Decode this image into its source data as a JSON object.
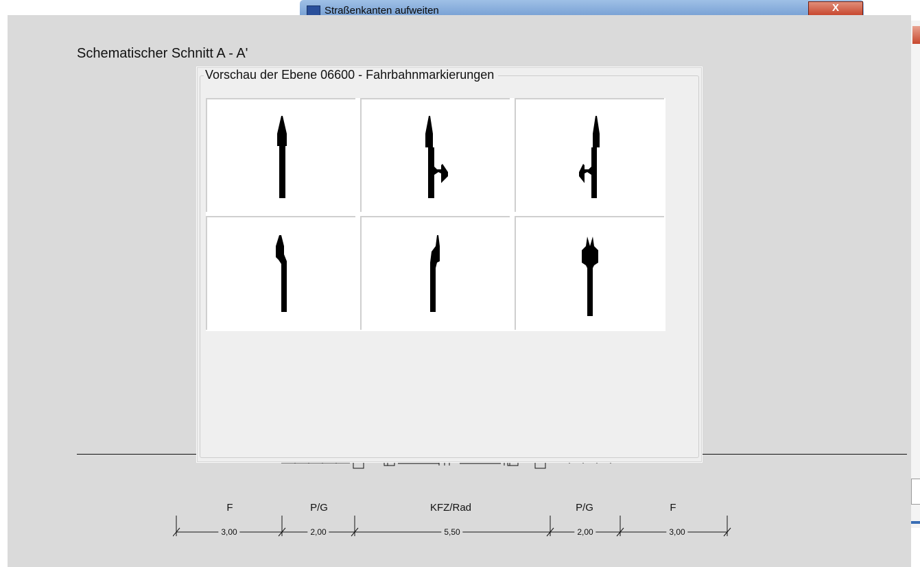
{
  "background_window": {
    "title": "Straßenkanten aufweiten",
    "close_label": "X"
  },
  "drawing": {
    "title": "Schematischer Schnitt A - A'",
    "sections": [
      {
        "label": "F",
        "width": "3,00"
      },
      {
        "label": "P/G",
        "width": "2,00"
      },
      {
        "label": "KFZ/Rad",
        "width": "5,50"
      },
      {
        "label": "P/G",
        "width": "2,00"
      },
      {
        "label": "F",
        "width": "3,00"
      }
    ]
  },
  "preview": {
    "legend": "Vorschau der Ebene 06600 - Fahrbahnmarkierungen",
    "arrows": [
      {
        "icon": "straight-arrow-icon"
      },
      {
        "icon": "straight-right-arrow-icon"
      },
      {
        "icon": "straight-left-arrow-icon"
      },
      {
        "icon": "straight-arrow-variant-icon"
      },
      {
        "icon": "right-bend-arrow-icon"
      },
      {
        "icon": "straight-left-right-arrow-icon"
      }
    ]
  }
}
